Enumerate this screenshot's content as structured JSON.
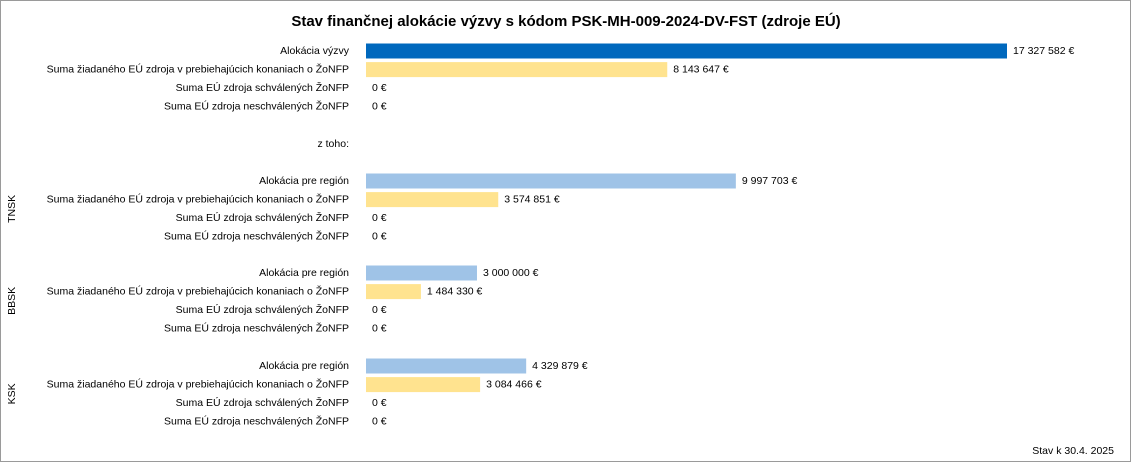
{
  "chart_data": {
    "type": "bar",
    "orientation": "horizontal",
    "title": "Stav finančnej alokácie výzvy s kódom PSK-MH-009-2024-DV-FST (zdroje EÚ)",
    "note": "z toho:",
    "footnote": "Stav k 30.4. 2025",
    "xlim": [
      0,
      17327582
    ],
    "sections": [
      {
        "categories": [
          "Alokácia výzvy",
          "Suma žiadaného EÚ zdroja v prebiehajúcich konaniach o ŽoNFP",
          "Suma EÚ zdroja schválených ŽoNFP",
          "Suma EÚ zdroja neschválených ŽoNFP"
        ],
        "values": [
          17327582,
          8143647,
          0,
          0
        ],
        "value_labels": [
          "17 327 582 €",
          "8 143 647 €",
          "0 €",
          "0 €"
        ],
        "colors": [
          "#0068bd",
          "#ffe38f",
          "#ffe38f",
          "#ffe38f"
        ]
      },
      {
        "group": "TNSK",
        "categories": [
          "Alokácia pre región",
          "Suma žiadaného EÚ zdroja v prebiehajúcich konaniach o ŽoNFP",
          "Suma EÚ zdroja schválených ŽoNFP",
          "Suma EÚ zdroja neschválených ŽoNFP"
        ],
        "values": [
          9997703,
          3574851,
          0,
          0
        ],
        "value_labels": [
          "9 997 703 €",
          "3 574 851 €",
          "0 €",
          "0 €"
        ],
        "colors": [
          "#9fc3e7",
          "#ffe38f",
          "#ffe38f",
          "#ffe38f"
        ]
      },
      {
        "group": "BBSK",
        "categories": [
          "Alokácia pre región",
          "Suma žiadaného EÚ zdroja v prebiehajúcich konaniach o ŽoNFP",
          "Suma EÚ zdroja schválených ŽoNFP",
          "Suma EÚ zdroja neschválených ŽoNFP"
        ],
        "values": [
          3000000,
          1484330,
          0,
          0
        ],
        "value_labels": [
          "3 000 000 €",
          "1 484 330 €",
          "0 €",
          "0 €"
        ],
        "colors": [
          "#9fc3e7",
          "#ffe38f",
          "#ffe38f",
          "#ffe38f"
        ]
      },
      {
        "group": "KSK",
        "categories": [
          "Alokácia pre región",
          "Suma žiadaného EÚ zdroja v prebiehajúcich konaniach o ŽoNFP",
          "Suma EÚ zdroja schválených ŽoNFP",
          "Suma EÚ zdroja neschválených ŽoNFP"
        ],
        "values": [
          4329879,
          3084466,
          0,
          0
        ],
        "value_labels": [
          "4 329 879 €",
          "3 084 466 €",
          "0 €",
          "0 €"
        ],
        "colors": [
          "#9fc3e7",
          "#ffe38f",
          "#ffe38f",
          "#ffe38f"
        ]
      }
    ]
  }
}
